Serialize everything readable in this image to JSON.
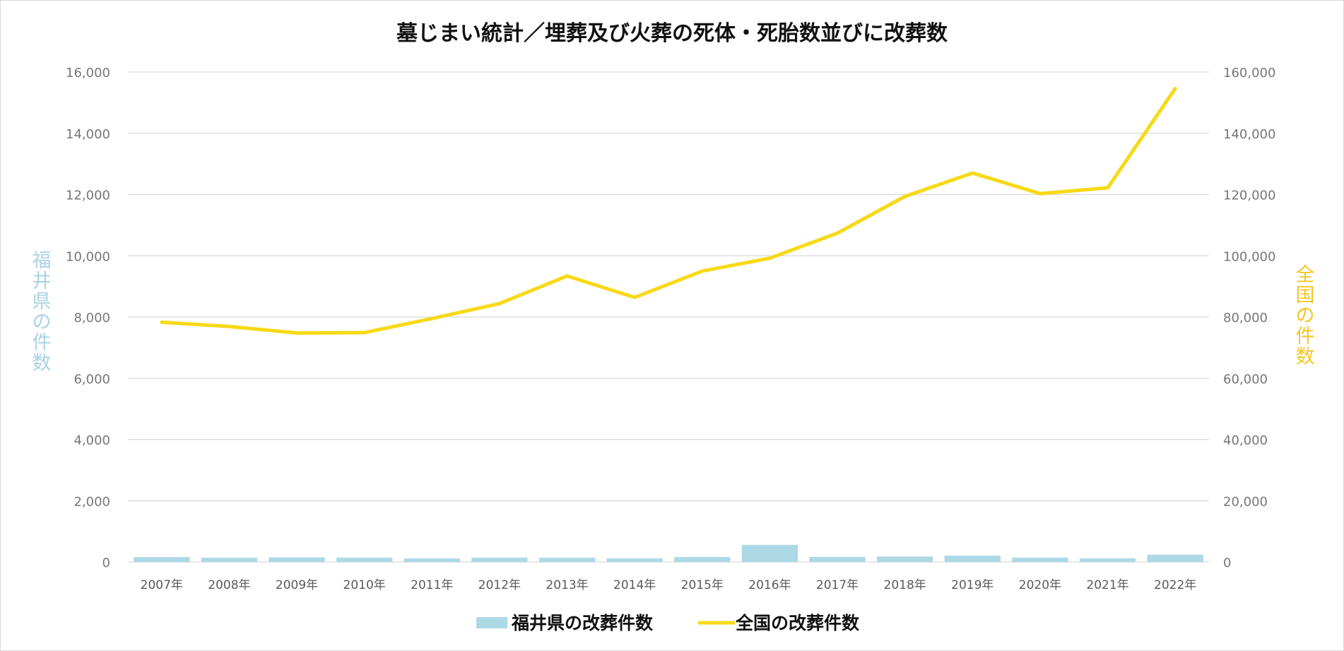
{
  "chart_data": {
    "type": "bar",
    "title": "墓じまい統計／埋葬及び火葬の死体・死胎数並びに改葬数",
    "categories": [
      "2007年",
      "2008年",
      "2009年",
      "2010年",
      "2011年",
      "2012年",
      "2013年",
      "2014年",
      "2015年",
      "2016年",
      "2017年",
      "2018年",
      "2019年",
      "2020年",
      "2021年",
      "2022年"
    ],
    "y_left": {
      "label": "福井県の件数",
      "ylim": [
        0,
        16000
      ],
      "ticks": [
        "0",
        "2,000",
        "4,000",
        "6,000",
        "8,000",
        "10,000",
        "12,000",
        "14,000",
        "16,000"
      ]
    },
    "y_right": {
      "label": "全国の件数",
      "ylim": [
        0,
        160000
      ],
      "ticks": [
        "0",
        "20,000",
        "40,000",
        "60,000",
        "80,000",
        "100,000",
        "120,000",
        "140,000",
        "160,000"
      ]
    },
    "series": [
      {
        "name": "福井県の改葬件数",
        "type": "bar",
        "axis": "left",
        "color": "#add8e6",
        "values": [
          160,
          140,
          150,
          145,
          120,
          145,
          140,
          120,
          165,
          560,
          165,
          180,
          210,
          145,
          120,
          240
        ]
      },
      {
        "name": "全国の改葬件数",
        "type": "line",
        "axis": "right",
        "color": "#f7d917",
        "values": [
          78300,
          76900,
          74800,
          74900,
          79500,
          84400,
          93400,
          86400,
          95000,
          99200,
          107400,
          119400,
          127000,
          120300,
          122200,
          154600
        ]
      }
    ],
    "grid": true,
    "legend_position": "bottom"
  }
}
